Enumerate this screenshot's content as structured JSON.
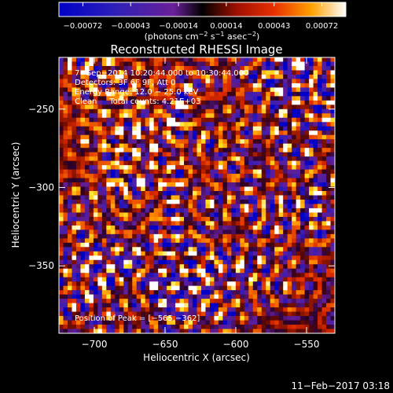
{
  "chart_data": {
    "type": "heatmap",
    "title": "Reconstructed RHESSI Image",
    "xlabel": "Heliocentric X (arcsec)",
    "ylabel": "Heliocentric Y (arcsec)",
    "xlim": [
      -725,
      -530
    ],
    "ylim": [
      -393,
      -217
    ],
    "x_ticks": [
      -700,
      -650,
      -600,
      -550
    ],
    "x_tick_labels": [
      "−700",
      "−650",
      "−600",
      "−550"
    ],
    "y_ticks": [
      -250,
      -300,
      -350
    ],
    "y_tick_labels": [
      "−250",
      "−300",
      "−350"
    ],
    "colorbar": {
      "tick_labels": [
        "−0.00072",
        "−0.00043",
        "−0.00014",
        "0.00014",
        "0.00043",
        "0.00072"
      ],
      "units_text": "(photons cm",
      "units_exp1": "−2",
      "units_mid": " s",
      "units_exp2": "−1",
      "units_mid2": " asec",
      "units_exp3": "−2",
      "units_end": ")",
      "colormap": "rainbow-hot (blue → purple → red → orange → yellow → white)"
    },
    "annotations": [
      "7−Sep−2014 10:20:44.000 to 10:30:44.000",
      "Detectors: 3F 6F 9F, Att 0",
      "Energy Range: 12.0 − 25.0 keV",
      "Clean     Total counts: 4.21E+03"
    ],
    "peak_label": "Position of Peak = [−565,−362]",
    "peak": [
      -565,
      -362
    ],
    "grid": false
  },
  "footer": {
    "date": "11−Feb−2017 03:18"
  }
}
